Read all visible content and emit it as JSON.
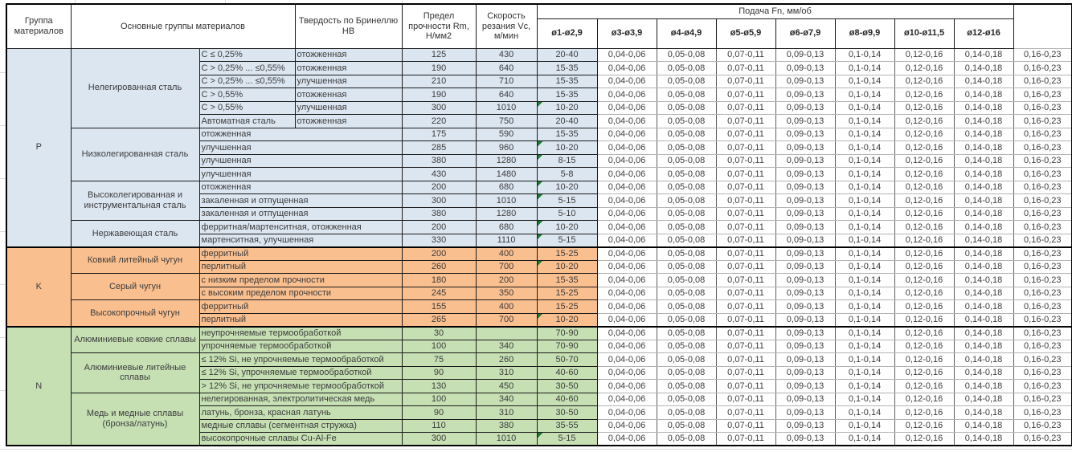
{
  "table": {
    "header": {
      "col_group": "Группа материалов",
      "col_materials": "Основные группы материалов",
      "col_hb": "Твердость по Бринеллю HB",
      "col_rm": "Предел прочности Rm, Н/мм2",
      "col_vc": "Скорость резания Vc, м/мин",
      "col_feed": "Подача Fn, мм/об",
      "feed_cols": [
        "ø1-ø2,9",
        "ø3-ø3,9",
        "ø4-ø4,9",
        "ø5-ø5,9",
        "ø6-ø7,9",
        "ø8-ø9,9",
        "ø10-ø11,5",
        "ø12-ø16"
      ]
    },
    "feed_values": [
      "0,04-0,06",
      "0,05-0,08",
      "0,07-0,11",
      "0,09-0,13",
      "0,1-0,14",
      "0,12-0,16",
      "0,14-0,18",
      "0,16-0,23"
    ],
    "comment_indicator_color": "#1e7b34",
    "groups": [
      {
        "code": "P",
        "color": "#dce6f1",
        "subgroups": [
          {
            "name": "Нелегированная сталь",
            "rows": [
              {
                "type": "C ≤ 0,25%",
                "cond": "отожженная",
                "hb": "125",
                "rm": "430",
                "vc": "20-40",
                "note": false
              },
              {
                "type": "C > 0,25% ... ≤0,55%",
                "cond": "отожженная",
                "hb": "190",
                "rm": "640",
                "vc": "15-35",
                "note": false
              },
              {
                "type": "C > 0,25% ... ≤0,55%",
                "cond": "улучшенная",
                "hb": "210",
                "rm": "710",
                "vc": "15-35",
                "note": false
              },
              {
                "type": "C > 0,55%",
                "cond": "отожженная",
                "hb": "190",
                "rm": "640",
                "vc": "15-35",
                "note": false
              },
              {
                "type": "C > 0,55%",
                "cond": "улучшенная",
                "hb": "300",
                "rm": "1010",
                "vc": "10-20",
                "note": true
              },
              {
                "type": "Автоматная сталь",
                "cond": "отожженная",
                "hb": "220",
                "rm": "750",
                "vc": "20-40",
                "note": false
              }
            ]
          },
          {
            "name": "Низколегированная сталь",
            "rows": [
              {
                "type": "отожженная",
                "hb": "175",
                "rm": "590",
                "vc": "15-35",
                "note": false
              },
              {
                "type": "улучшенная",
                "hb": "285",
                "rm": "960",
                "vc": "10-20",
                "note": true
              },
              {
                "type": "улучшенная",
                "hb": "380",
                "rm": "1280",
                "vc": "8-15",
                "note": true
              },
              {
                "type": "улучшенная",
                "hb": "430",
                "rm": "1480",
                "vc": "5-8",
                "note": false
              }
            ]
          },
          {
            "name": "Высоколегированная и инструментальная сталь",
            "rows": [
              {
                "type": "отожженная",
                "hb": "200",
                "rm": "680",
                "vc": "10-20",
                "note": true
              },
              {
                "type": "закаленная и отпущенная",
                "hb": "300",
                "rm": "1010",
                "vc": "5-15",
                "note": true
              },
              {
                "type": "закаленная и отпущенная",
                "hb": "380",
                "rm": "1280",
                "vc": "5-10",
                "note": false
              }
            ]
          },
          {
            "name": "Нержавеющая сталь",
            "rows": [
              {
                "type": "ферритная/мартенситная, отожженная",
                "hb": "200",
                "rm": "680",
                "vc": "10-20",
                "note": true
              },
              {
                "type": "мартенситная, улучшенная",
                "hb": "330",
                "rm": "1110",
                "vc": "5-15",
                "note": true
              }
            ]
          }
        ]
      },
      {
        "code": "K",
        "color": "#fabf8f",
        "subgroups": [
          {
            "name": "Ковкий литейный чугун",
            "rows": [
              {
                "type": "ферритный",
                "hb": "200",
                "rm": "400",
                "vc": "15-25",
                "note": false
              },
              {
                "type": "перлитный",
                "hb": "260",
                "rm": "700",
                "vc": "10-20",
                "note": true
              }
            ]
          },
          {
            "name": "Серый чугун",
            "rows": [
              {
                "type": "с низким пределом прочности",
                "hb": "180",
                "rm": "200",
                "vc": "15-35",
                "note": false
              },
              {
                "type": "с высоким пределом прочности",
                "hb": "245",
                "rm": "350",
                "vc": "15-25",
                "note": false
              }
            ]
          },
          {
            "name": "Высокопрочный чугун",
            "rows": [
              {
                "type": "ферритный",
                "hb": "155",
                "rm": "400",
                "vc": "15-25",
                "note": false
              },
              {
                "type": "перлитный",
                "hb": "265",
                "rm": "700",
                "vc": "10-20",
                "note": true
              }
            ]
          }
        ]
      },
      {
        "code": "N",
        "color": "#c6e0b4",
        "subgroups": [
          {
            "name": "Алюминиевые ковкие сплавы",
            "rows": [
              {
                "type": "неупрочняемые термообработкой",
                "hb": "30",
                "rm": "",
                "vc": "70-90",
                "note": false
              },
              {
                "type": "упрочняемые термообработкой",
                "hb": "100",
                "rm": "340",
                "vc": "70-90",
                "note": false
              }
            ]
          },
          {
            "name": "Алюминиевые литейные сплавы",
            "rows": [
              {
                "type": "≤ 12% Si, не упрочняемые термообработкой",
                "hb": "75",
                "rm": "260",
                "vc": "50-70",
                "note": false
              },
              {
                "type": "≤ 12% Si, упрочняемые термообработкой",
                "hb": "90",
                "rm": "310",
                "vc": "40-60",
                "note": false
              },
              {
                "type": "> 12% Si, не упрочняемые термообработкой",
                "hb": "130",
                "rm": "450",
                "vc": "30-50",
                "note": false
              }
            ]
          },
          {
            "name": "Медь и медные сплавы (бронза/латунь)",
            "rows": [
              {
                "type": "нелегированная, электролитическая медь",
                "hb": "100",
                "rm": "340",
                "vc": "40-60",
                "note": false
              },
              {
                "type": "латунь, бронза, красная латунь",
                "hb": "90",
                "rm": "310",
                "vc": "30-50",
                "note": false
              },
              {
                "type": "медные сплавы (сегментная стружка)",
                "hb": "110",
                "rm": "380",
                "vc": "35-55",
                "note": false
              },
              {
                "type": "высокопрочные сплавы Cu-Al-Fe",
                "hb": "300",
                "rm": "1010",
                "vc": "5-15",
                "note": true
              }
            ]
          }
        ]
      }
    ]
  }
}
